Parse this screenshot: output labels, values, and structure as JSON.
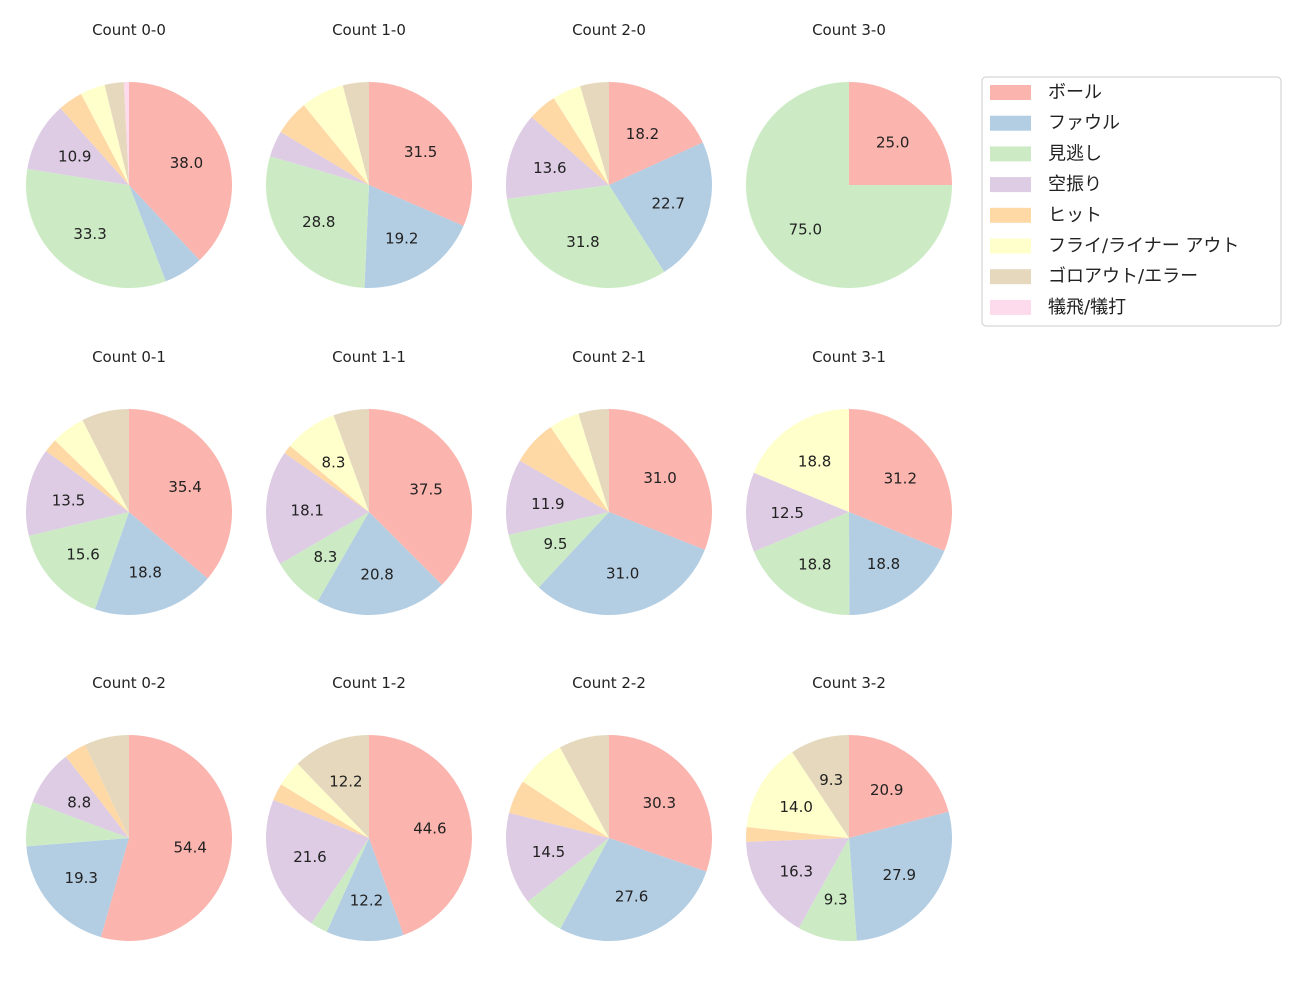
{
  "chart_data": {
    "type": "pie",
    "legend": {
      "placement": "right",
      "entries": [
        "ボール",
        "ファウル",
        "見逃し",
        "空振り",
        "ヒット",
        "フライ/ライナー アウト",
        "ゴロアウト/エラー",
        "犠飛/犠打"
      ]
    },
    "colors": [
      "#fbb4ae",
      "#b3cde3",
      "#ccebc5",
      "#decbe4",
      "#fed9a6",
      "#ffffcc",
      "#e5d8bd",
      "#fddaec"
    ],
    "label_threshold_percent": 8,
    "pies": [
      {
        "title": "Count 0-0",
        "values": [
          38.0,
          6.2,
          33.3,
          10.9,
          3.9,
          3.9,
          3.0,
          0.8
        ]
      },
      {
        "title": "Count 1-0",
        "values": [
          31.5,
          19.2,
          28.8,
          4.1,
          5.5,
          6.8,
          4.1,
          0
        ]
      },
      {
        "title": "Count 2-0",
        "values": [
          18.2,
          22.7,
          31.8,
          13.6,
          4.5,
          4.5,
          4.5,
          0
        ]
      },
      {
        "title": "Count 3-0",
        "values": [
          25.0,
          0,
          75.0,
          0,
          0,
          0,
          0,
          0
        ]
      },
      {
        "title": "Count 0-1",
        "values": [
          35.4,
          18.8,
          15.6,
          13.5,
          2.1,
          5.2,
          7.3,
          0
        ]
      },
      {
        "title": "Count 1-1",
        "values": [
          37.5,
          20.8,
          8.3,
          18.1,
          1.4,
          8.3,
          5.6,
          0
        ]
      },
      {
        "title": "Count 2-1",
        "values": [
          31.0,
          31.0,
          9.5,
          11.9,
          7.1,
          4.8,
          4.8,
          0
        ]
      },
      {
        "title": "Count 3-1",
        "values": [
          31.2,
          18.8,
          18.8,
          12.5,
          0,
          18.8,
          0,
          0
        ]
      },
      {
        "title": "Count 0-2",
        "values": [
          54.4,
          19.3,
          7.0,
          8.8,
          3.5,
          0,
          7.0,
          0
        ]
      },
      {
        "title": "Count 1-2",
        "values": [
          44.6,
          12.2,
          2.7,
          21.6,
          2.7,
          4.1,
          12.2,
          0
        ]
      },
      {
        "title": "Count 2-2",
        "values": [
          30.3,
          27.6,
          6.6,
          14.5,
          5.3,
          7.9,
          7.9,
          0
        ]
      },
      {
        "title": "Count 3-2",
        "values": [
          20.9,
          27.9,
          9.3,
          16.3,
          2.3,
          14.0,
          9.3,
          0
        ]
      }
    ]
  }
}
